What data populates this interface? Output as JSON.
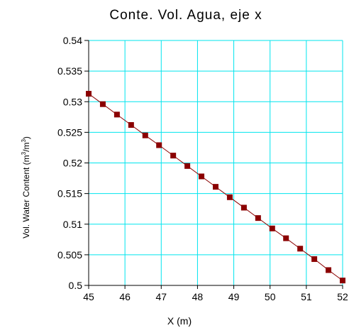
{
  "chart_data": {
    "type": "line",
    "title": "Conte. Vol. Agua, eje x",
    "xlabel": "X (m)",
    "ylabel_main": "Vol. Water Content (m",
    "ylabel_sup1": "3",
    "ylabel_mid": "/m",
    "ylabel_sup2": "3",
    "ylabel_end": ")",
    "xlim": [
      45,
      52
    ],
    "ylim": [
      0.5,
      0.54
    ],
    "x_ticks": [
      45,
      46,
      47,
      48,
      49,
      50,
      51,
      52
    ],
    "x_tick_labels": [
      "45",
      "46",
      "47",
      "48",
      "49",
      "50",
      "51",
      "52"
    ],
    "y_ticks": [
      0.5,
      0.505,
      0.51,
      0.515,
      0.52,
      0.525,
      0.53,
      0.535,
      0.54
    ],
    "y_tick_labels": [
      "0.5",
      "0.505",
      "0.51",
      "0.515",
      "0.52",
      "0.525",
      "0.53",
      "0.535",
      "0.54"
    ],
    "grid": true,
    "series": [
      {
        "x": [
          45.0,
          45.39,
          45.78,
          46.17,
          46.56,
          46.94,
          47.33,
          47.72,
          48.11,
          48.5,
          48.89,
          49.28,
          49.67,
          50.06,
          50.44,
          50.83,
          51.22,
          51.61,
          52.0
        ],
        "y": [
          0.5313,
          0.5296,
          0.5279,
          0.5262,
          0.5245,
          0.5229,
          0.5212,
          0.5195,
          0.5178,
          0.5161,
          0.5144,
          0.5127,
          0.511,
          0.5093,
          0.5077,
          0.506,
          0.5043,
          0.5025,
          0.5008
        ]
      }
    ],
    "colors": {
      "grid": "#00e5ee",
      "line": "#8b0000",
      "marker": "#8b0000",
      "axis": "#000000"
    }
  }
}
